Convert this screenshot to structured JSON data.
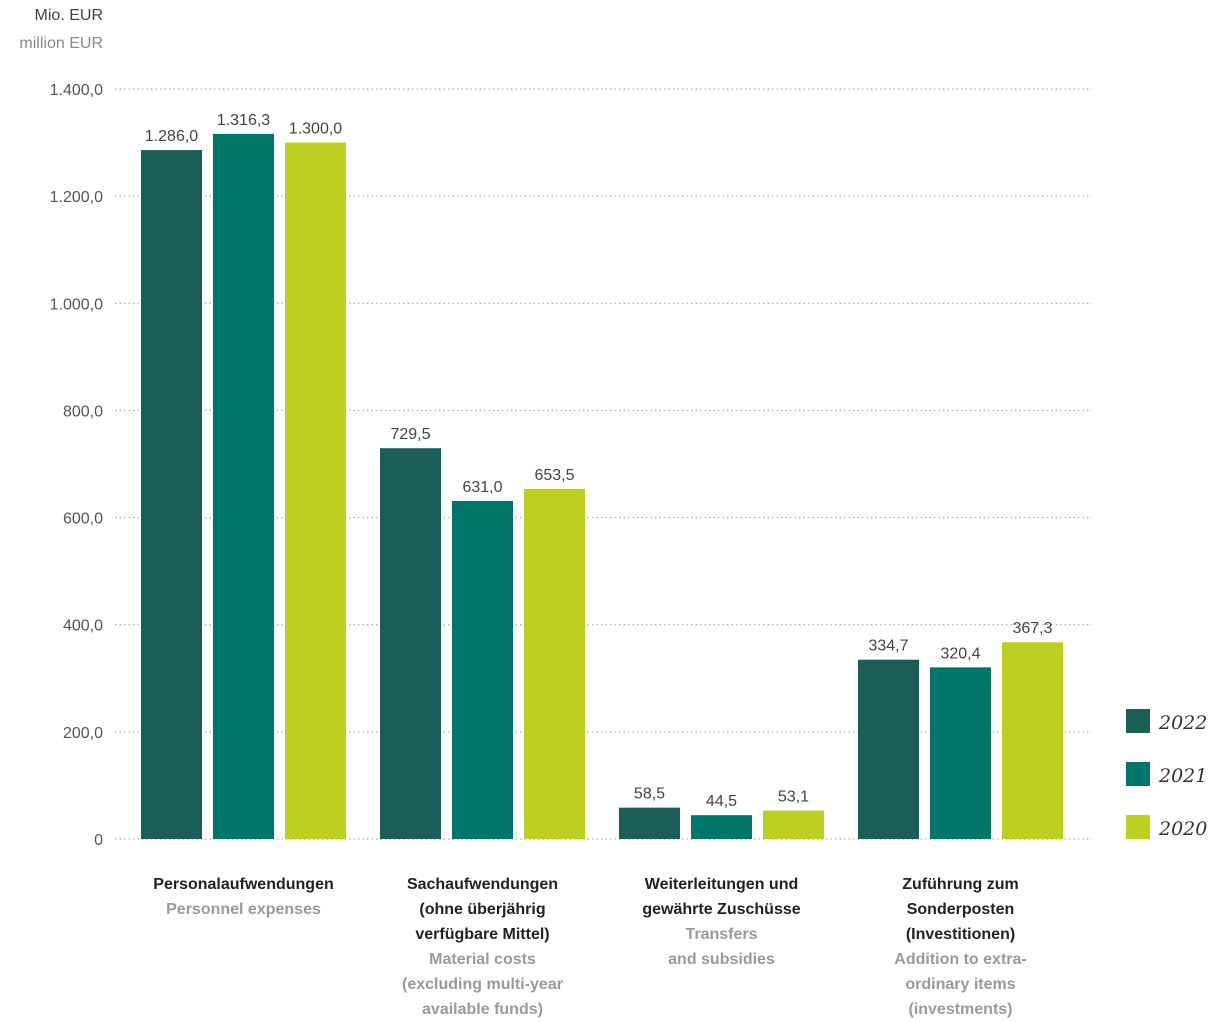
{
  "chart_data": {
    "type": "bar",
    "unit_de": "Mio. EUR",
    "unit_en": "million EUR",
    "categories": [
      {
        "de": "Personalaufwendungen",
        "en": "Personnel expenses"
      },
      {
        "de": "Sachaufwendungen\n(ohne überjährig\nverfügbare Mittel)",
        "en": "Material costs\n(excluding multi-year\navailable funds)"
      },
      {
        "de": "Weiterleitungen und\ngewährte Zuschüsse",
        "en": "Transfers\nand subsidies"
      },
      {
        "de": "Zuführung zum\nSonderposten\n(Investitionen)",
        "en": "Addition to extra-\nordinary items\n(investments)"
      }
    ],
    "series": [
      {
        "name": "2022",
        "color": "#1a5e57",
        "values": [
          1286.0,
          729.5,
          58.5,
          334.7
        ],
        "labels": [
          "1.286,0",
          "729,5",
          "58,5",
          "334,7"
        ]
      },
      {
        "name": "2021",
        "color": "#00766a",
        "values": [
          1316.3,
          631.0,
          44.5,
          320.4
        ],
        "labels": [
          "1.316,3",
          "631,0",
          "44,5",
          "320,4"
        ]
      },
      {
        "name": "2020",
        "color": "#bcd11f",
        "values": [
          1300.0,
          653.5,
          53.1,
          367.3
        ],
        "labels": [
          "1.300,0",
          "653,5",
          "53,1",
          "367,3"
        ]
      }
    ],
    "ylim": [
      0,
      1400
    ],
    "yticks": [
      0,
      200,
      400,
      600,
      800,
      1000,
      1200,
      1400
    ],
    "ytick_labels": [
      "0",
      "200,0",
      "400,0",
      "600,0",
      "800,0",
      "1.000,0",
      "1.200,0",
      "1.400,0"
    ],
    "grid": true,
    "legend_position": "right"
  }
}
